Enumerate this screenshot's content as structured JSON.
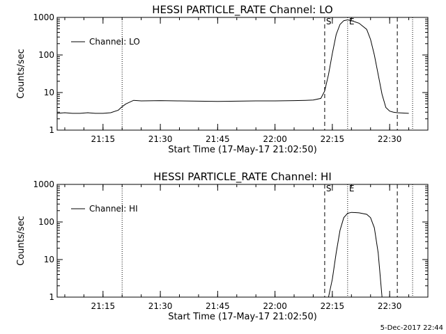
{
  "chart_data": [
    {
      "type": "line",
      "title": "HESSI PARTICLE_RATE Channel: LO",
      "xlabel": "Start Time (17-May-17 21:02:50)",
      "ylabel": "Counts/sec",
      "yscale": "log",
      "ylim": [
        1,
        1000
      ],
      "yticks": [
        1,
        10,
        100,
        1000
      ],
      "ytick_labels": [
        "1",
        "10",
        "100",
        "1000"
      ],
      "xlim": [
        "21:03",
        "22:40"
      ],
      "xticks": [
        "21:15",
        "21:30",
        "21:45",
        "22:00",
        "22:15",
        "22:30"
      ],
      "legend_position": "top-left",
      "series": [
        {
          "name": "Channel: LO",
          "x": [
            "21:03",
            "21:05",
            "21:07",
            "21:09",
            "21:11",
            "21:13",
            "21:15",
            "21:17",
            "21:19",
            "21:20",
            "21:21",
            "21:23",
            "21:25",
            "21:30",
            "21:35",
            "21:40",
            "21:45",
            "21:50",
            "21:55",
            "22:00",
            "22:05",
            "22:08",
            "22:10",
            "22:12",
            "22:13",
            "22:14",
            "22:15",
            "22:16",
            "22:17",
            "22:18",
            "22:19",
            "22:20",
            "22:22",
            "22:24",
            "22:25",
            "22:26",
            "22:27",
            "22:28",
            "22:29",
            "22:30",
            "22:31",
            "22:32",
            "22:35"
          ],
          "y": [
            2.8,
            2.9,
            2.8,
            2.8,
            2.9,
            2.8,
            2.8,
            2.9,
            3.4,
            4.2,
            5.0,
            6.2,
            6.0,
            6.1,
            6.0,
            5.9,
            5.8,
            5.9,
            6.0,
            6.0,
            6.1,
            6.2,
            6.3,
            7.0,
            11,
            30,
            110,
            350,
            650,
            820,
            860,
            820,
            700,
            480,
            260,
            100,
            30,
            9,
            4,
            3.2,
            3.0,
            2.9,
            2.8
          ]
        }
      ],
      "vlines": [
        {
          "x": "21:20",
          "style": "dotted"
        },
        {
          "x": "22:13",
          "style": "dashed",
          "label": "S"
        },
        {
          "x": "22:19",
          "style": "dotted",
          "label": "E"
        },
        {
          "x": "22:32",
          "style": "dashed"
        },
        {
          "x": "22:36",
          "style": "dotted"
        }
      ]
    },
    {
      "type": "line",
      "title": "HESSI PARTICLE_RATE Channel: HI",
      "xlabel": "Start Time (17-May-17 21:02:50)",
      "ylabel": "Counts/sec",
      "yscale": "log",
      "ylim": [
        1,
        1000
      ],
      "yticks": [
        1,
        10,
        100,
        1000
      ],
      "ytick_labels": [
        "1",
        "10",
        "100",
        "1000"
      ],
      "xlim": [
        "21:03",
        "22:40"
      ],
      "xticks": [
        "21:15",
        "21:30",
        "21:45",
        "22:00",
        "22:15",
        "22:30"
      ],
      "legend_position": "top-left",
      "series": [
        {
          "name": "Channel: HI",
          "x": [
            "22:14",
            "22:15",
            "22:16",
            "22:17",
            "22:18",
            "22:19",
            "22:20",
            "22:22",
            "22:24",
            "22:25",
            "22:26",
            "22:27",
            "22:28"
          ],
          "y": [
            1,
            3,
            15,
            60,
            130,
            170,
            180,
            175,
            160,
            130,
            70,
            15,
            1
          ]
        }
      ],
      "vlines": [
        {
          "x": "21:20",
          "style": "dotted"
        },
        {
          "x": "22:13",
          "style": "dashed",
          "label": "S"
        },
        {
          "x": "22:19",
          "style": "dotted",
          "label": "E"
        },
        {
          "x": "22:32",
          "style": "dashed"
        },
        {
          "x": "22:36",
          "style": "dotted"
        }
      ]
    }
  ],
  "footer": {
    "timestamp": "5-Dec-2017 22:44"
  }
}
